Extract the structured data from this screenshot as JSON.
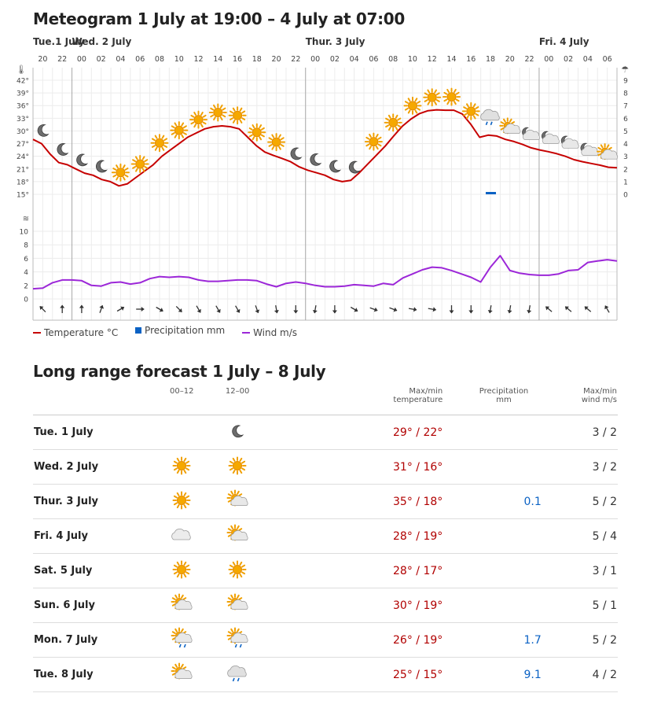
{
  "meteogram": {
    "title": "Meteogram 1 July at 19:00 – 4 July at 07:00",
    "days": [
      {
        "label": "Tue.1 July"
      },
      {
        "label": "Wed. 2 July"
      },
      {
        "label": "Thur. 3 July"
      },
      {
        "label": "Fri. 4 July"
      }
    ],
    "hours": [
      "20",
      "22",
      "00",
      "02",
      "04",
      "06",
      "08",
      "10",
      "12",
      "14",
      "16",
      "18",
      "20",
      "22",
      "00",
      "02",
      "04",
      "06",
      "08",
      "10",
      "12",
      "14",
      "16",
      "18",
      "20",
      "22",
      "00",
      "02",
      "04",
      "06"
    ],
    "temp_ticks": [
      "42°",
      "39°",
      "36°",
      "33°",
      "30°",
      "27°",
      "24°",
      "21°",
      "18°",
      "15°"
    ],
    "precip_ticks": [
      "9",
      "8",
      "7",
      "6",
      "5",
      "4",
      "3",
      "2",
      "1",
      "0"
    ],
    "wind_ticks": [
      "10",
      "8",
      "6",
      "4",
      "2",
      "0"
    ],
    "temperature_c": [
      28,
      27,
      24.5,
      22.5,
      22,
      21,
      20,
      19.5,
      18.5,
      18,
      17,
      17.5,
      19,
      20.5,
      22,
      24,
      25.5,
      27,
      28.5,
      29.5,
      30.5,
      31,
      31.2,
      31,
      30.5,
      28.5,
      26.5,
      25,
      24.2,
      23.5,
      22.7,
      21.5,
      20.7,
      20.1,
      19.5,
      18.5,
      18,
      18.3,
      20.1,
      22.2,
      24.3,
      26.4,
      28.8,
      31.1,
      32.8,
      34.1,
      34.8,
      35,
      34.9,
      34.9,
      34,
      31.5,
      28.5,
      29,
      28.8,
      28,
      27.5,
      26.8,
      26,
      25.5,
      25.1,
      24.6,
      24,
      23.2,
      22.7,
      22.3,
      21.9,
      21.4,
      21.3
    ],
    "wind_ms": [
      1.5,
      1.6,
      2.4,
      2.8,
      2.8,
      2.7,
      2,
      1.9,
      2.4,
      2.5,
      2.2,
      2.4,
      3,
      3.3,
      3.2,
      3.3,
      3.2,
      2.8,
      2.6,
      2.6,
      2.7,
      2.8,
      2.8,
      2.7,
      2.2,
      1.8,
      2.3,
      2.5,
      2.3,
      2,
      1.8,
      1.8,
      1.9,
      2.1,
      2,
      1.9,
      2.3,
      2.1,
      3.1,
      3.7,
      4.3,
      4.7,
      4.6,
      4.2,
      3.7,
      3.2,
      2.5,
      4.7,
      6.4,
      4.2,
      3.8,
      3.6,
      3.5,
      3.5,
      3.7,
      4.2,
      4.3,
      5.4,
      5.6,
      5.8,
      5.6
    ],
    "precip_mm": [
      {
        "hour_index": 46,
        "value": 0.1
      }
    ],
    "sky_symbols": [
      "moon-icon",
      "moon-icon",
      "moon-icon",
      "moon-icon",
      "sun-icon",
      "sun-icon",
      "sun-icon",
      "sun-icon",
      "sun-icon",
      "sun-icon",
      "sun-icon",
      "sun-icon",
      "sun-icon",
      "moon-icon",
      "moon-icon",
      "moon-icon",
      "moon-icon",
      "sun-icon",
      "sun-icon",
      "sun-icon",
      "sun-icon",
      "sun-icon",
      "sun-icon",
      "cloud-rain-icon",
      "partly-cloudy-icon",
      "cloud-moon-icon",
      "cloud-moon-icon",
      "cloud-moon-icon",
      "cloud-moon-icon",
      "partly-cloudy-icon"
    ],
    "wind_dir_deg": [
      135,
      180,
      180,
      200,
      240,
      270,
      300,
      315,
      330,
      330,
      330,
      340,
      350,
      0,
      10,
      0,
      300,
      290,
      290,
      280,
      280,
      0,
      0,
      10,
      10,
      10,
      130,
      130,
      130,
      150
    ],
    "colors": {
      "temperature": "#c60000",
      "precipitation": "#0b62c4",
      "wind": "#9c27d8"
    },
    "legend": {
      "temperature": "Temperature °C",
      "precipitation": "Precipitation mm",
      "wind": "Wind m/s"
    }
  },
  "long_range": {
    "title": "Long range forecast 1 July – 8 July",
    "headers": {
      "p1": "00–12",
      "p2": "12–00",
      "temp1": "Max/min",
      "temp2": "temperature",
      "prec1": "Precipitation",
      "prec2": "mm",
      "wind1": "Max/min",
      "wind2": "wind m/s"
    },
    "rows": [
      {
        "day": "Tue. 1 July",
        "icon1": "",
        "icon2": "moon-icon",
        "temp": "29° / 22°",
        "prec": "",
        "wind": "3 / 2"
      },
      {
        "day": "Wed. 2 July",
        "icon1": "sun-icon",
        "icon2": "sun-icon",
        "temp": "31° / 16°",
        "prec": "",
        "wind": "3 / 2"
      },
      {
        "day": "Thur. 3 July",
        "icon1": "sun-icon",
        "icon2": "partly-cloudy-icon",
        "temp": "35° / 18°",
        "prec": "0.1",
        "wind": "5 / 2"
      },
      {
        "day": "Fri. 4 July",
        "icon1": "cloud-icon",
        "icon2": "partly-cloudy-icon",
        "temp": "28° / 19°",
        "prec": "",
        "wind": "5 / 4"
      },
      {
        "day": "Sat. 5 July",
        "icon1": "sun-icon",
        "icon2": "sun-icon",
        "temp": "28° / 17°",
        "prec": "",
        "wind": "3 / 1"
      },
      {
        "day": "Sun. 6 July",
        "icon1": "partly-cloudy-icon",
        "icon2": "partly-cloudy-icon",
        "temp": "30° / 19°",
        "prec": "",
        "wind": "5 / 1"
      },
      {
        "day": "Mon. 7 July",
        "icon1": "sun-cloud-rain-icon",
        "icon2": "sun-cloud-rain-icon",
        "temp": "26° / 19°",
        "prec": "1.7",
        "wind": "5 / 2"
      },
      {
        "day": "Tue. 8 July",
        "icon1": "partly-cloudy-icon",
        "icon2": "cloud-rain-icon",
        "temp": "25° / 15°",
        "prec": "9.1",
        "wind": "4 / 2"
      }
    ]
  }
}
